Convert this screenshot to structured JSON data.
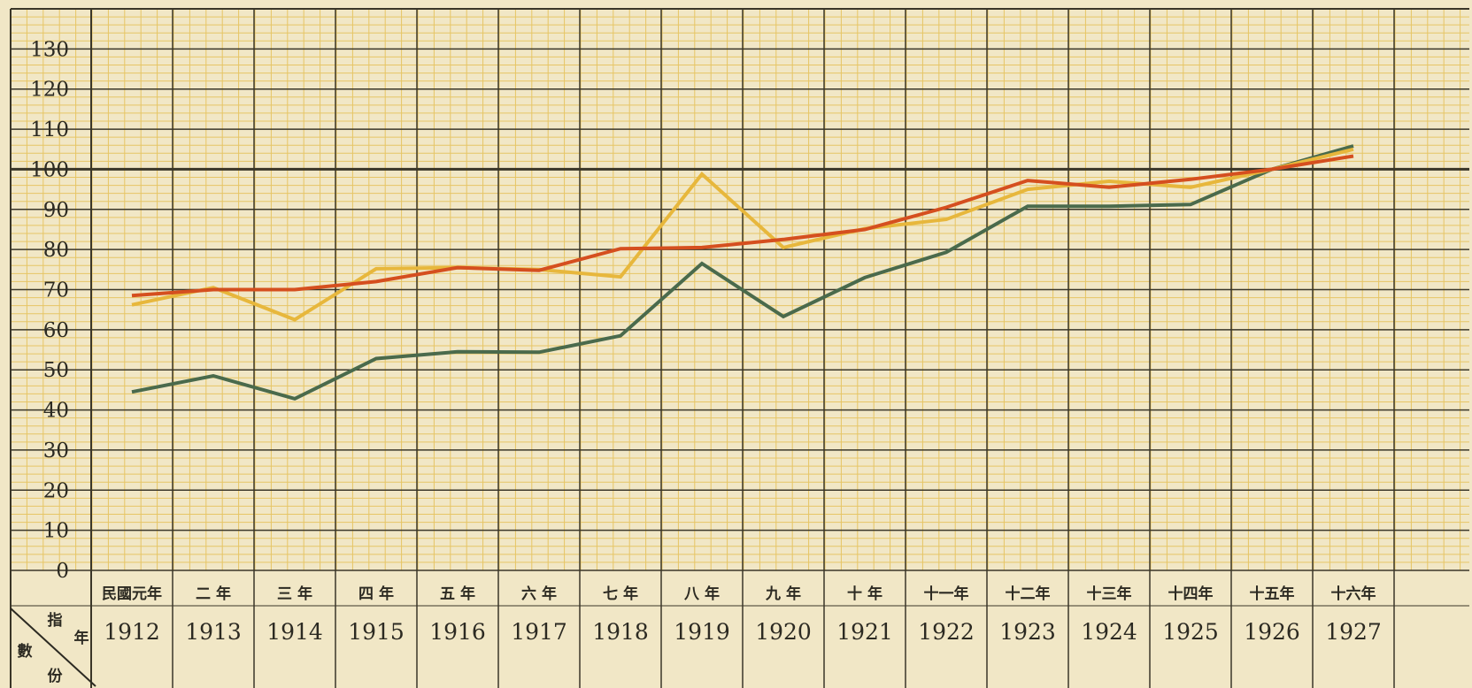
{
  "chart_data": {
    "type": "line",
    "title": "",
    "xlabel": "年份",
    "ylabel": "指數",
    "corner_labels": [
      "指",
      "數",
      "年",
      "份"
    ],
    "ylim": [
      0,
      130
    ],
    "yticks": [
      0,
      10,
      20,
      30,
      40,
      50,
      60,
      70,
      80,
      90,
      100,
      110,
      120,
      130
    ],
    "grid": true,
    "x": [
      1912,
      1913,
      1914,
      1915,
      1916,
      1917,
      1918,
      1919,
      1920,
      1921,
      1922,
      1923,
      1924,
      1925,
      1926,
      1927
    ],
    "categories_cn": [
      "民國元年",
      "二 年",
      "三 年",
      "四 年",
      "五 年",
      "六 年",
      "七 年",
      "八 年",
      "九 年",
      "十 年",
      "十一年",
      "十二年",
      "十三年",
      "十四年",
      "十五年",
      "十六年"
    ],
    "categories_year": [
      "1912",
      "1913",
      "1914",
      "1915",
      "1916",
      "1917",
      "1918",
      "1919",
      "1920",
      "1921",
      "1922",
      "1923",
      "1924",
      "1925",
      "1926",
      "1927"
    ],
    "series": [
      {
        "color": "#4a6a4c",
        "values": [
          44.5,
          48.5,
          42.8,
          52.8,
          54.5,
          54.4,
          58.5,
          76.5,
          63.3,
          73,
          79.3,
          90.8,
          90.8,
          91.2,
          100,
          105.8
        ]
      },
      {
        "color": "#e7b73c",
        "values": [
          66.2,
          70.5,
          62.5,
          75.2,
          75.5,
          75,
          73.2,
          98.8,
          80.5,
          85.2,
          87.5,
          95,
          97,
          95.5,
          100,
          105
        ]
      },
      {
        "color": "#d54f1f",
        "values": [
          68.5,
          70,
          70,
          72,
          75.5,
          74.8,
          80.2,
          80.5,
          82.5,
          85,
          90.5,
          97.2,
          95.5,
          97.5,
          100,
          103.3
        ]
      }
    ]
  }
}
